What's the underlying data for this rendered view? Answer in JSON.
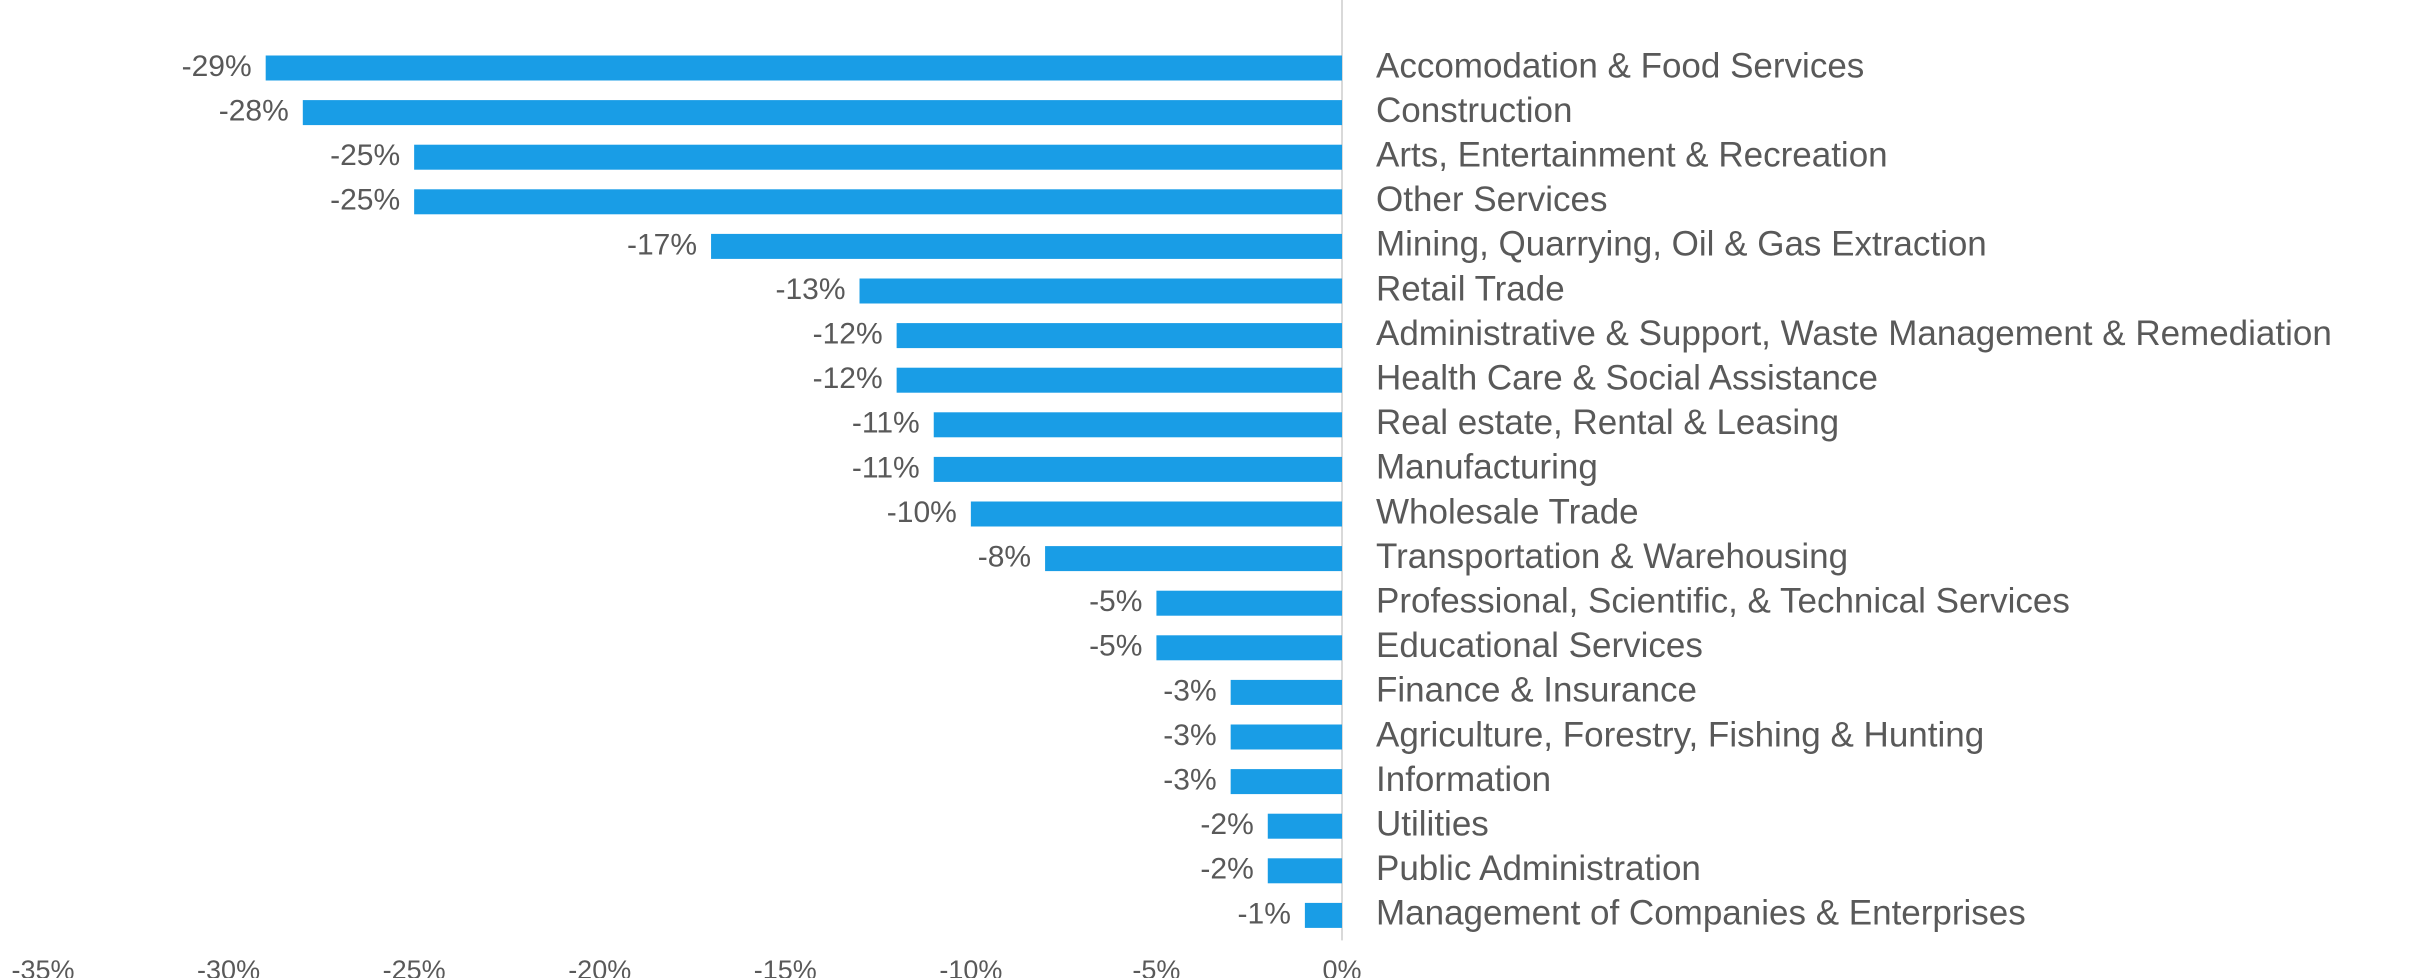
{
  "chart_data": {
    "type": "bar",
    "orientation": "horizontal",
    "categories": [
      "Accomodation & Food Services",
      "Construction",
      "Arts, Entertainment & Recreation",
      "Other Services",
      "Mining, Quarrying, Oil & Gas Extraction",
      "Retail Trade",
      "Administrative & Support, Waste Management & Remediation",
      "Health Care & Social Assistance",
      "Real estate, Rental & Leasing",
      "Manufacturing",
      "Wholesale Trade",
      "Transportation & Warehousing",
      "Professional, Scientific, & Technical Services",
      "Educational Services",
      "Finance & Insurance",
      "Agriculture, Forestry, Fishing & Hunting",
      "Information",
      "Utilities",
      "Public Administration",
      "Management of Companies & Enterprises"
    ],
    "values": [
      -29,
      -28,
      -25,
      -25,
      -17,
      -13,
      -12,
      -12,
      -11,
      -11,
      -10,
      -8,
      -5,
      -5,
      -3,
      -3,
      -3,
      -2,
      -2,
      -1
    ],
    "value_labels": [
      "-29%",
      "-28%",
      "-25%",
      "-25%",
      "-17%",
      "-13%",
      "-12%",
      "-12%",
      "-11%",
      "-11%",
      "-10%",
      "-8%",
      "-5%",
      "-5%",
      "-3%",
      "-3%",
      "-3%",
      "-2%",
      "-2%",
      "-1%"
    ],
    "color": "#199de6",
    "xlim": [
      -35,
      0
    ],
    "xticks": [
      {
        "value": -35,
        "label": "-35%"
      },
      {
        "value": -30,
        "label": "-30%"
      },
      {
        "value": -25,
        "label": "-25%"
      },
      {
        "value": -20,
        "label": "-20%"
      },
      {
        "value": -15,
        "label": "-15%"
      },
      {
        "value": -10,
        "label": "-10%"
      },
      {
        "value": -5,
        "label": "-5%"
      },
      {
        "value": 0,
        "label": "0%"
      }
    ],
    "grid": false
  }
}
